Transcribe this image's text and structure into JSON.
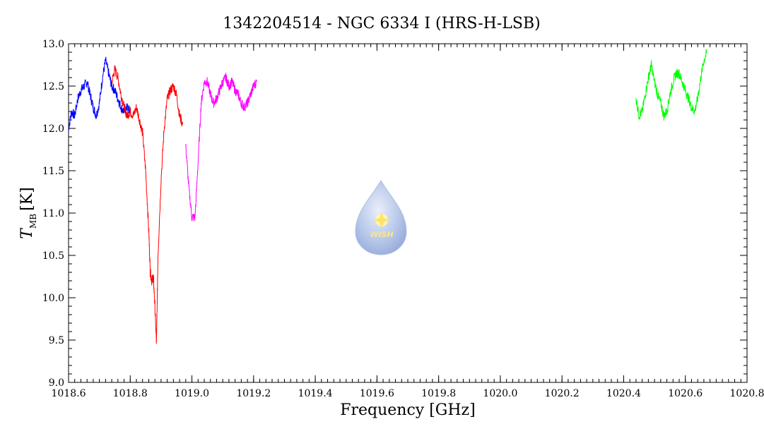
{
  "chart_data": {
    "type": "line",
    "title": "1342204514 - NGC 6334 I (HRS-H-LSB)",
    "xlabel": "Frequency [GHz]",
    "ylabel_main": "T",
    "ylabel_sub": "MB",
    "ylabel_unit": "[K]",
    "xlim": [
      1018.6,
      1020.8
    ],
    "ylim": [
      9.0,
      13.0
    ],
    "x_ticks": [
      1018.6,
      1018.8,
      1019.0,
      1019.2,
      1019.4,
      1019.6,
      1019.8,
      1020.0,
      1020.2,
      1020.4,
      1020.6,
      1020.8
    ],
    "x_tick_labels": [
      "1018.6",
      "1018.8",
      "1019.0",
      "1019.2",
      "1019.4",
      "1019.6",
      "1019.8",
      "1020.0",
      "1020.2",
      "1020.4",
      "1020.6",
      "1020.8"
    ],
    "y_ticks": [
      9.0,
      9.5,
      10.0,
      10.5,
      11.0,
      11.5,
      12.0,
      12.5,
      13.0
    ],
    "y_tick_labels": [
      "9.0",
      "9.5",
      "10.0",
      "10.5",
      "11.0",
      "11.5",
      "12.0",
      "12.5",
      "13.0"
    ],
    "grid": false,
    "series": [
      {
        "color": "#0000ff",
        "x": [
          1018.6,
          1018.61,
          1018.62,
          1018.63,
          1018.64,
          1018.65,
          1018.66,
          1018.67,
          1018.68,
          1018.69,
          1018.7,
          1018.71,
          1018.72,
          1018.73,
          1018.74,
          1018.75,
          1018.76,
          1018.77,
          1018.78,
          1018.79,
          1018.8
        ],
        "y": [
          12.0,
          12.2,
          12.15,
          12.35,
          12.45,
          12.5,
          12.55,
          12.4,
          12.25,
          12.15,
          12.3,
          12.6,
          12.8,
          12.65,
          12.5,
          12.45,
          12.35,
          12.25,
          12.2,
          12.25,
          12.2
        ]
      },
      {
        "color": "#ff0000",
        "x": [
          1018.74,
          1018.75,
          1018.76,
          1018.77,
          1018.78,
          1018.79,
          1018.8,
          1018.81,
          1018.82,
          1018.83,
          1018.84,
          1018.85,
          1018.86,
          1018.865,
          1018.87,
          1018.875,
          1018.88,
          1018.885,
          1018.89,
          1018.9,
          1018.91,
          1018.92,
          1018.93,
          1018.94,
          1018.95,
          1018.96,
          1018.97
        ],
        "y": [
          12.55,
          12.7,
          12.6,
          12.4,
          12.25,
          12.15,
          12.2,
          12.15,
          12.25,
          12.1,
          11.95,
          11.5,
          10.8,
          10.3,
          10.2,
          10.25,
          9.9,
          9.45,
          10.5,
          11.4,
          12.0,
          12.35,
          12.45,
          12.5,
          12.4,
          12.15,
          12.05
        ]
      },
      {
        "color": "#ff00ff",
        "x": [
          1018.98,
          1018.99,
          1019.0,
          1019.01,
          1019.02,
          1019.03,
          1019.04,
          1019.05,
          1019.06,
          1019.07,
          1019.08,
          1019.09,
          1019.1,
          1019.11,
          1019.12,
          1019.13,
          1019.14,
          1019.15,
          1019.16,
          1019.17,
          1019.18,
          1019.19,
          1019.2,
          1019.21
        ],
        "y": [
          11.8,
          11.3,
          10.95,
          10.95,
          11.6,
          12.3,
          12.55,
          12.55,
          12.4,
          12.3,
          12.35,
          12.45,
          12.55,
          12.6,
          12.5,
          12.55,
          12.45,
          12.4,
          12.3,
          12.25,
          12.3,
          12.4,
          12.5,
          12.55
        ]
      },
      {
        "color": "#00ff00",
        "x": [
          1020.44,
          1020.45,
          1020.46,
          1020.47,
          1020.48,
          1020.49,
          1020.5,
          1020.51,
          1020.52,
          1020.53,
          1020.54,
          1020.55,
          1020.56,
          1020.57,
          1020.58,
          1020.59,
          1020.6,
          1020.61,
          1020.62,
          1020.63,
          1020.64,
          1020.65,
          1020.66,
          1020.67
        ],
        "y": [
          12.35,
          12.15,
          12.2,
          12.4,
          12.6,
          12.75,
          12.55,
          12.4,
          12.3,
          12.15,
          12.2,
          12.4,
          12.55,
          12.65,
          12.65,
          12.55,
          12.45,
          12.35,
          12.25,
          12.2,
          12.35,
          12.6,
          12.8,
          12.9
        ]
      }
    ]
  }
}
